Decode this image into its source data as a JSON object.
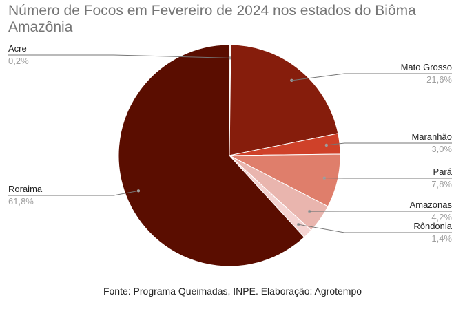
{
  "chart_data": {
    "type": "pie",
    "title": "Número de Focos em Fevereiro de 2024 nos estados do Biôma Amazônia",
    "slices": [
      {
        "label": "Acre",
        "value": 0.2,
        "pct_label": "0,2%",
        "color": "#f3e5e1"
      },
      {
        "label": "Mato Grosso",
        "value": 21.6,
        "pct_label": "21,6%",
        "color": "#861d0c"
      },
      {
        "label": "Maranhão",
        "value": 3.0,
        "pct_label": "3,0%",
        "color": "#cf4129"
      },
      {
        "label": "Pará",
        "value": 7.8,
        "pct_label": "7,8%",
        "color": "#df7e6b"
      },
      {
        "label": "Amazonas",
        "value": 4.2,
        "pct_label": "4,2%",
        "color": "#e9b5ae"
      },
      {
        "label": "Rôndonia",
        "value": 1.4,
        "pct_label": "1,4%",
        "color": "#f4d3d1"
      },
      {
        "label": "Roraima",
        "value": 61.8,
        "pct_label": "61,8%",
        "color": "#5a0d00"
      }
    ],
    "legend": "none"
  },
  "source": "Fonte: Programa Queimadas, INPE. Elaboração: Agrotempo"
}
